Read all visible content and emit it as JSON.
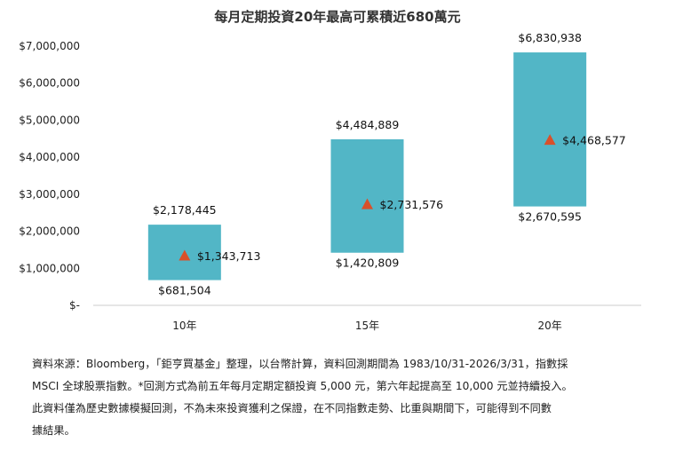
{
  "chart_data": {
    "type": "range_bar",
    "title": "每月定期投資20年最高可累積近680萬元",
    "categories": [
      "10年",
      "15年",
      "20年"
    ],
    "series": [
      {
        "low": 681504,
        "high": 2178445,
        "mid": 1343713
      },
      {
        "low": 1420809,
        "high": 4484889,
        "mid": 2731576
      },
      {
        "low": 2670595,
        "high": 6830938,
        "mid": 4468577
      }
    ],
    "labels": {
      "low": [
        "$681,504",
        "$1,420,809",
        "$2,670,595"
      ],
      "high": [
        "$2,178,445",
        "$4,484,889",
        "$6,830,938"
      ],
      "mid": [
        "$1,343,713",
        "$2,731,576",
        "$4,468,577"
      ]
    },
    "yticks": [
      0,
      1000000,
      2000000,
      3000000,
      4000000,
      5000000,
      6000000,
      7000000
    ],
    "ytick_labels": [
      "$-",
      "$1,000,000",
      "$2,000,000",
      "$3,000,000",
      "$4,000,000",
      "$5,000,000",
      "$6,000,000",
      "$7,000,000"
    ],
    "ylim": [
      0,
      7000000
    ],
    "grid": false,
    "colors": {
      "bar": "#52B6C6",
      "marker": "#D9502A",
      "axis": "#cccccc"
    }
  },
  "footnote": {
    "lines": [
      "資料來源：Bloomberg，「鉅亨買基金」整理，以台幣計算，資料回測期間為 1983/10/31-2026/3/31，指數採",
      "MSCI 全球股票指數。*回測方式為前五年每月定期定額投資 5,000 元，第六年起提高至 10,000 元並持續投入。",
      "此資料僅為歷史數據模擬回測，不為未來投資獲利之保證，在不同指數走勢、比重與期間下，可能得到不同數",
      "據結果。"
    ]
  }
}
